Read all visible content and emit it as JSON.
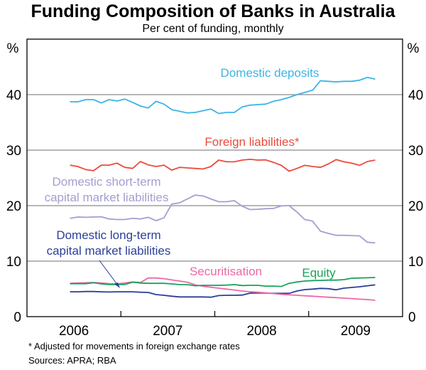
{
  "chart_data": {
    "type": "line",
    "title": "Funding Composition of Banks in Australia",
    "subtitle": "Per cent of funding, monthly",
    "ylabel_left": "%",
    "ylabel_right": "%",
    "ylim": [
      0,
      50
    ],
    "yticks": [
      0,
      10,
      20,
      30,
      40
    ],
    "xlim": [
      "2006-01",
      "2009-12"
    ],
    "xtick_labels": [
      "2006",
      "2007",
      "2008",
      "2009"
    ],
    "grid": true,
    "x": [
      "2006-06",
      "2006-07",
      "2006-08",
      "2006-09",
      "2006-10",
      "2006-11",
      "2006-12",
      "2007-01",
      "2007-02",
      "2007-03",
      "2007-04",
      "2007-05",
      "2007-06",
      "2007-07",
      "2007-08",
      "2007-09",
      "2007-10",
      "2007-11",
      "2007-12",
      "2008-01",
      "2008-02",
      "2008-03",
      "2008-04",
      "2008-05",
      "2008-06",
      "2008-07",
      "2008-08",
      "2008-09",
      "2008-10",
      "2008-11",
      "2008-12",
      "2009-01",
      "2009-02",
      "2009-03",
      "2009-04",
      "2009-05",
      "2009-06",
      "2009-07",
      "2009-08",
      "2009-09"
    ],
    "series": [
      {
        "name": "Domestic deposits",
        "color": "#3cb4e6",
        "values": [
          38.7,
          38.7,
          39.1,
          39.1,
          38.5,
          39.1,
          38.85,
          39.2,
          38.6,
          37.95,
          37.6,
          38.8,
          38.3,
          37.3,
          37.0,
          36.7,
          36.8,
          37.1,
          37.4,
          36.6,
          36.8,
          36.8,
          37.8,
          38.1,
          38.2,
          38.3,
          38.8,
          39.1,
          39.5,
          40.0,
          40.4,
          40.8,
          42.5,
          42.4,
          42.3,
          42.4,
          42.4,
          42.6,
          43.1,
          42.8
        ]
      },
      {
        "name": "Foreign liabilities*",
        "color": "#ec4a3c",
        "values": [
          27.3,
          27.05,
          26.5,
          26.3,
          27.3,
          27.3,
          27.65,
          26.9,
          26.7,
          27.95,
          27.35,
          27.05,
          27.3,
          26.4,
          26.9,
          26.8,
          26.7,
          26.6,
          27.05,
          28.2,
          27.9,
          27.9,
          28.2,
          28.35,
          28.2,
          28.25,
          27.8,
          27.25,
          26.2,
          26.7,
          27.25,
          27.05,
          26.9,
          27.5,
          28.3,
          27.9,
          27.65,
          27.25,
          27.95,
          28.2
        ]
      },
      {
        "name": "Domestic short-term capital market liabilities",
        "color": "#a29fd1",
        "values": [
          17.7,
          17.95,
          17.9,
          17.95,
          18.0,
          17.6,
          17.5,
          17.5,
          17.7,
          17.6,
          17.9,
          17.3,
          17.8,
          20.3,
          20.5,
          21.2,
          21.9,
          21.75,
          21.2,
          20.7,
          20.7,
          20.9,
          19.9,
          19.3,
          19.35,
          19.45,
          19.5,
          19.95,
          20.0,
          18.85,
          17.5,
          17.2,
          15.4,
          15.0,
          14.65,
          14.65,
          14.6,
          14.55,
          13.4,
          13.3
        ]
      },
      {
        "name": "Domestic long-term capital market liabilities",
        "color": "#2b3f98",
        "values": [
          4.48,
          4.48,
          4.53,
          4.53,
          4.48,
          4.44,
          4.48,
          4.48,
          4.48,
          4.4,
          4.36,
          3.97,
          3.85,
          3.68,
          3.55,
          3.55,
          3.55,
          3.55,
          3.5,
          3.8,
          3.85,
          3.85,
          3.89,
          4.23,
          4.27,
          4.23,
          4.19,
          4.19,
          4.19,
          4.62,
          4.87,
          4.96,
          5.09,
          5.04,
          4.83,
          5.13,
          5.26,
          5.38,
          5.56,
          5.73
        ]
      },
      {
        "name": "Securitisation",
        "color": "#ee68a6",
        "values": [
          6.0,
          6.07,
          6.1,
          6.15,
          6.07,
          5.94,
          5.9,
          6.07,
          6.24,
          6.15,
          6.96,
          6.96,
          6.84,
          6.62,
          6.41,
          6.2,
          5.72,
          5.47,
          5.3,
          5.13,
          4.96,
          4.79,
          4.62,
          4.49,
          4.4,
          4.27,
          4.15,
          4.02,
          3.93,
          3.85,
          3.76,
          3.68,
          3.59,
          3.5,
          3.42,
          3.33,
          3.25,
          3.16,
          3.08,
          2.95
        ]
      },
      {
        "name": "Equity",
        "color": "#17a35a",
        "values": [
          5.94,
          5.94,
          5.94,
          6.1,
          5.9,
          5.8,
          5.8,
          5.8,
          6.2,
          6.07,
          6.0,
          6.0,
          6.0,
          5.9,
          5.77,
          5.77,
          5.56,
          5.64,
          5.64,
          5.64,
          5.68,
          5.77,
          5.6,
          5.64,
          5.64,
          5.5,
          5.5,
          5.43,
          6.0,
          6.24,
          6.41,
          6.5,
          6.53,
          6.58,
          6.58,
          6.67,
          6.92,
          6.96,
          7.0,
          7.05
        ]
      }
    ],
    "footnote": "*   Adjusted for movements in foreign exchange rates",
    "sources": "Sources: APRA; RBA"
  }
}
